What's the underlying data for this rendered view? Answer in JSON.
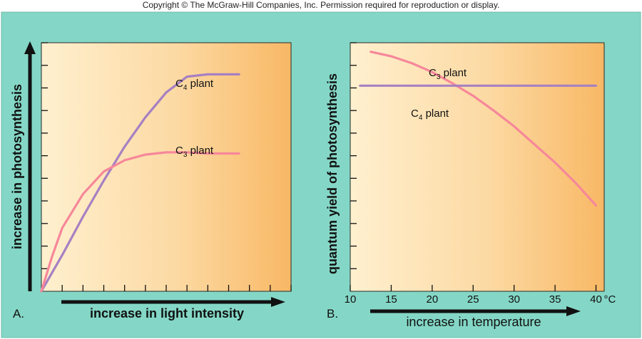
{
  "copyright": "Copyright © The McGraw-Hill Companies, Inc. Permission required for reproduction or display.",
  "colors": {
    "background_teal": "#84d7c6",
    "gradient_light": "#fff0cf",
    "gradient_dark": "#f8b865",
    "c3_line": "#f6879a",
    "c4_line": "#a680c2",
    "axis": "#111111"
  },
  "chart_data": [
    {
      "type": "line",
      "panel_label": "A.",
      "xlabel": "increase in light intensity",
      "ylabel": "increase in photosynthesis",
      "x_ticks": 12,
      "y_ticks": 11,
      "xlim": [
        0,
        12
      ],
      "ylim": [
        0,
        11
      ],
      "grid": false,
      "series": [
        {
          "name": "C4 plant",
          "name_base": "C",
          "name_sub": "4",
          "name_rest": " plant",
          "color": "#a680c2",
          "points": [
            [
              0,
              0
            ],
            [
              1,
              1.6
            ],
            [
              2,
              3.3
            ],
            [
              3,
              4.9
            ],
            [
              4,
              6.4
            ],
            [
              5,
              7.7
            ],
            [
              6,
              8.8
            ],
            [
              7,
              9.5
            ],
            [
              8,
              9.6
            ],
            [
              9.5,
              9.6
            ]
          ]
        },
        {
          "name": "C3 plant",
          "name_base": "C",
          "name_sub": "3",
          "name_rest": " plant",
          "color": "#f6879a",
          "points": [
            [
              0,
              0
            ],
            [
              0.5,
              1.5
            ],
            [
              1,
              2.8
            ],
            [
              2,
              4.3
            ],
            [
              3,
              5.3
            ],
            [
              4,
              5.8
            ],
            [
              5,
              6.05
            ],
            [
              6,
              6.15
            ],
            [
              7,
              6.15
            ],
            [
              8,
              6.1
            ],
            [
              9.5,
              6.1
            ]
          ]
        }
      ]
    },
    {
      "type": "line",
      "panel_label": "B.",
      "xlabel": "increase in temperature",
      "ylabel": "quantum yield of photosynthesis",
      "x_tick_labels": [
        "10",
        "15",
        "20",
        "25",
        "30",
        "35",
        "40"
      ],
      "x_unit": "°C",
      "y_ticks": 11,
      "xlim": [
        10,
        41
      ],
      "ylim": [
        0,
        11
      ],
      "grid": false,
      "series": [
        {
          "name": "C3 plant",
          "name_base": "C",
          "name_sub": "3",
          "name_rest": " plant",
          "color": "#f6879a",
          "points": [
            [
              12.5,
              10.6
            ],
            [
              15,
              10.4
            ],
            [
              17.5,
              10.1
            ],
            [
              20,
              9.7
            ],
            [
              22.5,
              9.2
            ],
            [
              25,
              8.65
            ],
            [
              27.5,
              8.0
            ],
            [
              30,
              7.3
            ],
            [
              32.5,
              6.5
            ],
            [
              35,
              5.7
            ],
            [
              37.5,
              4.8
            ],
            [
              40,
              3.8
            ]
          ]
        },
        {
          "name": "C4 plant",
          "name_base": "C",
          "name_sub": "4",
          "name_rest": " plant",
          "color": "#a680c2",
          "points": [
            [
              11.2,
              9.1
            ],
            [
              40,
              9.1
            ]
          ]
        }
      ]
    }
  ]
}
